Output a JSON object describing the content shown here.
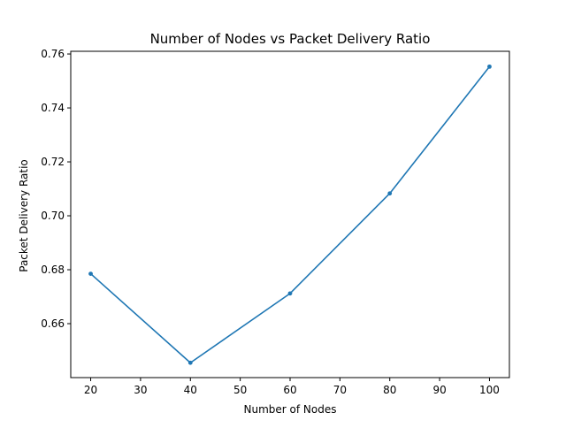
{
  "chart_data": {
    "type": "line",
    "title": "Number of Nodes vs Packet Delivery Ratio",
    "xlabel": "Number of Nodes",
    "ylabel": "Packet Delivery Ratio",
    "x": [
      20,
      40,
      60,
      80,
      100
    ],
    "series": [
      {
        "values": [
          0.6785,
          0.6455,
          0.6712,
          0.7083,
          0.7553
        ]
      }
    ],
    "xlim": [
      16,
      104
    ],
    "ylim": [
      0.64,
      0.761
    ],
    "xticks": [
      20,
      30,
      40,
      50,
      60,
      70,
      80,
      90,
      100
    ],
    "xtick_labels": [
      "20",
      "30",
      "40",
      "50",
      "60",
      "70",
      "80",
      "90",
      "100"
    ],
    "yticks": [
      0.66,
      0.68,
      0.7,
      0.72,
      0.74,
      0.76
    ],
    "ytick_labels": [
      "0.66",
      "0.68",
      "0.70",
      "0.72",
      "0.74",
      "0.76"
    ],
    "grid": false,
    "marker": "point",
    "color": "#1f77b4"
  }
}
